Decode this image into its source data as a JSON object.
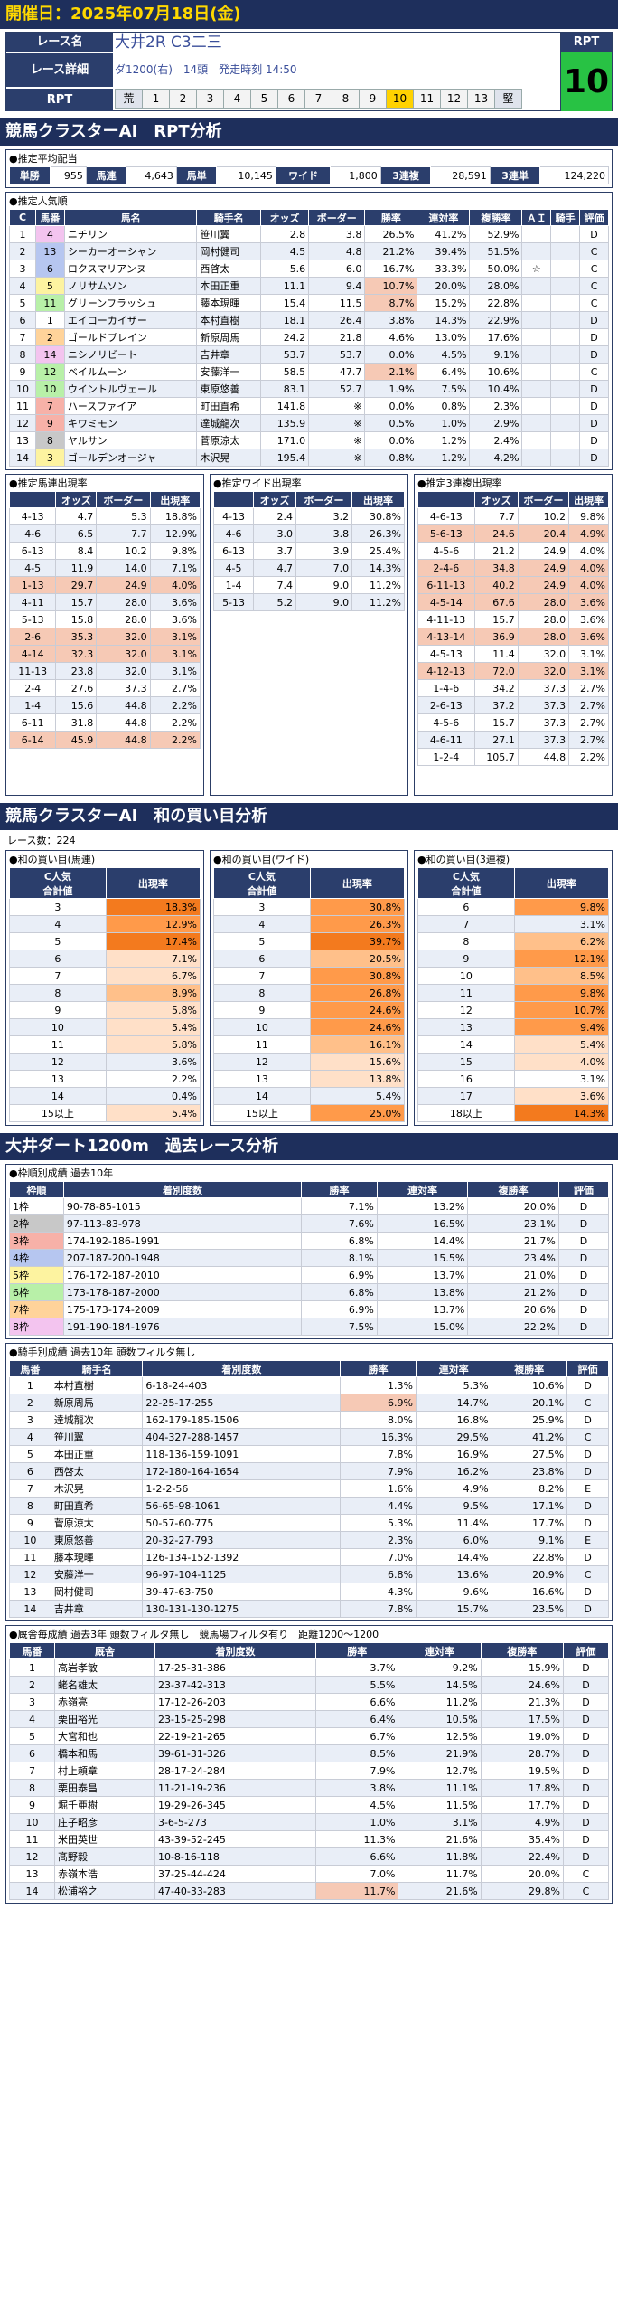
{
  "header": {
    "date": "開催日：2025年07月18日(金)"
  },
  "race": {
    "name_label": "レース名",
    "name": "大井2R C3二三",
    "detail_label": "レース詳細",
    "detail": "ダ1200(右)　14頭　発走時刻 14:50",
    "rpt_label": "RPT",
    "rpt_cells": [
      "荒",
      "1",
      "2",
      "3",
      "4",
      "5",
      "6",
      "7",
      "8",
      "9",
      "10",
      "11",
      "12",
      "13",
      "堅"
    ],
    "rpt_highlight": 10,
    "rpt_box_label": "RPT",
    "rpt_value": "10"
  },
  "s1": {
    "title": "競馬クラスターAI　RPT分析"
  },
  "payout": {
    "title": "●推定平均配当",
    "items": [
      [
        "単勝",
        "955"
      ],
      [
        "馬連",
        "4,643"
      ],
      [
        "馬単",
        "10,145"
      ],
      [
        "ワイド",
        "1,800"
      ],
      [
        "3連複",
        "28,591"
      ],
      [
        "3連単",
        "124,220"
      ]
    ]
  },
  "popularity": {
    "title": "●推定人気順",
    "headers": [
      "C",
      "馬番",
      "馬名",
      "騎手名",
      "オッズ",
      "ボーダー",
      "勝率",
      "連対率",
      "複勝率",
      "ＡＩ",
      "騎手",
      "評価"
    ],
    "rows": [
      [
        "1",
        "4",
        "ニチリン",
        "笹川翼",
        "2.8",
        "3.8",
        "26.5%",
        "41.2%",
        "52.9%",
        "",
        "",
        "D"
      ],
      [
        "2",
        "13",
        "シーカーオーシャン",
        "岡村健司",
        "4.5",
        "4.8",
        "21.2%",
        "39.4%",
        "51.5%",
        "",
        "",
        "C"
      ],
      [
        "3",
        "6",
        "ロクスマリアンヌ",
        "西啓太",
        "5.6",
        "6.0",
        "16.7%",
        "33.3%",
        "50.0%",
        "☆",
        "",
        "C"
      ],
      [
        "4",
        "5",
        "ノリサムソン",
        "本田正重",
        "11.1",
        "9.4",
        "10.7%",
        "20.0%",
        "28.0%",
        "",
        "",
        "C"
      ],
      [
        "5",
        "11",
        "グリーンフラッシュ",
        "藤本現暉",
        "15.4",
        "11.5",
        "8.7%",
        "15.2%",
        "22.8%",
        "",
        "",
        "C"
      ],
      [
        "6",
        "1",
        "エイコーカイザー",
        "本村直樹",
        "18.1",
        "26.4",
        "3.8%",
        "14.3%",
        "22.9%",
        "",
        "",
        "D"
      ],
      [
        "7",
        "2",
        "ゴールドプレイン",
        "新原周馬",
        "24.2",
        "21.8",
        "4.6%",
        "13.0%",
        "17.6%",
        "",
        "",
        "D"
      ],
      [
        "8",
        "14",
        "ニシノリビート",
        "吉井章",
        "53.7",
        "53.7",
        "0.0%",
        "4.5%",
        "9.1%",
        "",
        "",
        "D"
      ],
      [
        "9",
        "12",
        "ベイルムーン",
        "安藤洋一",
        "58.5",
        "47.7",
        "2.1%",
        "6.4%",
        "10.6%",
        "",
        "",
        "C"
      ],
      [
        "10",
        "10",
        "ウイントルヴェール",
        "東原悠善",
        "83.1",
        "52.7",
        "1.9%",
        "7.5%",
        "10.4%",
        "",
        "",
        "D"
      ],
      [
        "11",
        "7",
        "ハースファイア",
        "町田直希",
        "141.8",
        "※",
        "0.0%",
        "0.8%",
        "2.3%",
        "",
        "",
        "D"
      ],
      [
        "12",
        "9",
        "キワミモン",
        "達城龍次",
        "135.9",
        "※",
        "0.5%",
        "1.0%",
        "2.9%",
        "",
        "",
        "D"
      ],
      [
        "13",
        "8",
        "ヤルサン",
        "菅原涼太",
        "171.0",
        "※",
        "0.0%",
        "1.2%",
        "2.4%",
        "",
        "",
        "D"
      ],
      [
        "14",
        "3",
        "ゴールデンオージャ",
        "木沢晃",
        "195.4",
        "※",
        "0.8%",
        "1.2%",
        "4.2%",
        "",
        "",
        "D"
      ]
    ]
  },
  "umaren": {
    "title": "●推定馬連出現率",
    "headers": [
      "",
      "オッズ",
      "ボーダー",
      "出現率"
    ],
    "rows": [
      [
        "4-13",
        "4.7",
        "5.3",
        "18.8%"
      ],
      [
        "4-6",
        "6.5",
        "7.7",
        "12.9%"
      ],
      [
        "6-13",
        "8.4",
        "10.2",
        "9.8%"
      ],
      [
        "4-5",
        "11.9",
        "14.0",
        "7.1%"
      ],
      [
        "1-13",
        "29.7",
        "24.9",
        "4.0%"
      ],
      [
        "4-11",
        "15.7",
        "28.0",
        "3.6%"
      ],
      [
        "5-13",
        "15.8",
        "28.0",
        "3.6%"
      ],
      [
        "2-6",
        "35.3",
        "32.0",
        "3.1%"
      ],
      [
        "4-14",
        "32.3",
        "32.0",
        "3.1%"
      ],
      [
        "11-13",
        "23.8",
        "32.0",
        "3.1%"
      ],
      [
        "2-4",
        "27.6",
        "37.3",
        "2.7%"
      ],
      [
        "1-4",
        "15.6",
        "44.8",
        "2.2%"
      ],
      [
        "6-11",
        "31.8",
        "44.8",
        "2.2%"
      ],
      [
        "6-14",
        "45.9",
        "44.8",
        "2.2%"
      ]
    ]
  },
  "wide": {
    "title": "●推定ワイド出現率",
    "headers": [
      "",
      "オッズ",
      "ボーダー",
      "出現率"
    ],
    "rows": [
      [
        "4-13",
        "2.4",
        "3.2",
        "30.8%"
      ],
      [
        "4-6",
        "3.0",
        "3.8",
        "26.3%"
      ],
      [
        "6-13",
        "3.7",
        "3.9",
        "25.4%"
      ],
      [
        "4-5",
        "4.7",
        "7.0",
        "14.3%"
      ],
      [
        "1-4",
        "7.4",
        "9.0",
        "11.2%"
      ],
      [
        "5-13",
        "5.2",
        "9.0",
        "11.2%"
      ]
    ]
  },
  "sanrenpuku": {
    "title": "●推定3連複出現率",
    "headers": [
      "",
      "オッズ",
      "ボーダー",
      "出現率"
    ],
    "rows": [
      [
        "4-6-13",
        "7.7",
        "10.2",
        "9.8%"
      ],
      [
        "5-6-13",
        "24.6",
        "20.4",
        "4.9%"
      ],
      [
        "4-5-6",
        "21.2",
        "24.9",
        "4.0%"
      ],
      [
        "2-4-6",
        "34.8",
        "24.9",
        "4.0%"
      ],
      [
        "6-11-13",
        "40.2",
        "24.9",
        "4.0%"
      ],
      [
        "4-5-14",
        "67.6",
        "28.0",
        "3.6%"
      ],
      [
        "4-11-13",
        "15.7",
        "28.0",
        "3.6%"
      ],
      [
        "4-13-14",
        "36.9",
        "28.0",
        "3.6%"
      ],
      [
        "4-5-13",
        "11.4",
        "32.0",
        "3.1%"
      ],
      [
        "4-12-13",
        "72.0",
        "32.0",
        "3.1%"
      ],
      [
        "1-4-6",
        "34.2",
        "37.3",
        "2.7%"
      ],
      [
        "2-6-13",
        "37.2",
        "37.3",
        "2.7%"
      ],
      [
        "4-5-6",
        "15.7",
        "37.3",
        "2.7%"
      ],
      [
        "4-6-11",
        "27.1",
        "37.3",
        "2.7%"
      ],
      [
        "1-2-4",
        "105.7",
        "44.8",
        "2.2%"
      ]
    ]
  },
  "s2": {
    "title": "競馬クラスターAI　和の買い目分析",
    "count": "レース数：224"
  },
  "wa1": {
    "title": "●和の買い目(馬連)",
    "h1": "C人気\n合計値",
    "h2": "出現率",
    "rows": [
      [
        "3",
        "18.3%"
      ],
      [
        "4",
        "12.9%"
      ],
      [
        "5",
        "17.4%"
      ],
      [
        "6",
        "7.1%"
      ],
      [
        "7",
        "6.7%"
      ],
      [
        "8",
        "8.9%"
      ],
      [
        "9",
        "5.8%"
      ],
      [
        "10",
        "5.4%"
      ],
      [
        "11",
        "5.8%"
      ],
      [
        "12",
        "3.6%"
      ],
      [
        "13",
        "2.2%"
      ],
      [
        "14",
        "0.4%"
      ],
      [
        "15以上",
        "5.4%"
      ]
    ]
  },
  "wa2": {
    "title": "●和の買い目(ワイド)",
    "h1": "C人気\n合計値",
    "h2": "出現率",
    "rows": [
      [
        "3",
        "30.8%"
      ],
      [
        "4",
        "26.3%"
      ],
      [
        "5",
        "39.7%"
      ],
      [
        "6",
        "20.5%"
      ],
      [
        "7",
        "30.8%"
      ],
      [
        "8",
        "26.8%"
      ],
      [
        "9",
        "24.6%"
      ],
      [
        "10",
        "24.6%"
      ],
      [
        "11",
        "16.1%"
      ],
      [
        "12",
        "15.6%"
      ],
      [
        "13",
        "13.8%"
      ],
      [
        "14",
        "5.4%"
      ],
      [
        "15以上",
        "25.0%"
      ]
    ]
  },
  "wa3": {
    "title": "●和の買い目(3連複)",
    "h1": "C人気\n合計値",
    "h2": "出現率",
    "rows": [
      [
        "6",
        "9.8%"
      ],
      [
        "7",
        "3.1%"
      ],
      [
        "8",
        "6.2%"
      ],
      [
        "9",
        "12.1%"
      ],
      [
        "10",
        "8.5%"
      ],
      [
        "11",
        "9.8%"
      ],
      [
        "12",
        "10.7%"
      ],
      [
        "13",
        "9.4%"
      ],
      [
        "14",
        "5.4%"
      ],
      [
        "15",
        "4.0%"
      ],
      [
        "16",
        "3.1%"
      ],
      [
        "17",
        "3.6%"
      ],
      [
        "18以上",
        "14.3%"
      ]
    ]
  },
  "s3": {
    "title": "大井ダート1200m　過去レース分析"
  },
  "waku": {
    "title": "●枠順別成績 過去10年",
    "headers": [
      "枠順",
      "着別度数",
      "勝率",
      "連対率",
      "複勝率",
      "評価"
    ],
    "rows": [
      [
        "1枠",
        "90-78-85-1015",
        "7.1%",
        "13.2%",
        "20.0%",
        "D"
      ],
      [
        "2枠",
        "97-113-83-978",
        "7.6%",
        "16.5%",
        "23.1%",
        "D"
      ],
      [
        "3枠",
        "174-192-186-1991",
        "6.8%",
        "14.4%",
        "21.7%",
        "D"
      ],
      [
        "4枠",
        "207-187-200-1948",
        "8.1%",
        "15.5%",
        "23.4%",
        "D"
      ],
      [
        "5枠",
        "176-172-187-2010",
        "6.9%",
        "13.7%",
        "21.0%",
        "D"
      ],
      [
        "6枠",
        "173-178-187-2000",
        "6.8%",
        "13.8%",
        "21.2%",
        "D"
      ],
      [
        "7枠",
        "175-173-174-2009",
        "6.9%",
        "13.7%",
        "20.6%",
        "D"
      ],
      [
        "8枠",
        "191-190-184-1976",
        "7.5%",
        "15.0%",
        "22.2%",
        "D"
      ]
    ],
    "colors": [
      "#ffffff",
      "#c8c8c8",
      "#f7b1a8",
      "#b6c6f0",
      "#fdf3a0",
      "#b8f0a8",
      "#ffd39a",
      "#f3c4ef"
    ]
  },
  "jockey": {
    "title": "●騎手別成績 過去10年 頭数フィルタ無し",
    "headers": [
      "馬番",
      "騎手名",
      "着別度数",
      "勝率",
      "連対率",
      "複勝率",
      "評価"
    ],
    "rows": [
      [
        "1",
        "本村直樹",
        "6-18-24-403",
        "1.3%",
        "5.3%",
        "10.6%",
        "D"
      ],
      [
        "2",
        "新原周馬",
        "22-25-17-255",
        "6.9%",
        "14.7%",
        "20.1%",
        "C"
      ],
      [
        "3",
        "達城龍次",
        "162-179-185-1506",
        "8.0%",
        "16.8%",
        "25.9%",
        "D"
      ],
      [
        "4",
        "笹川翼",
        "404-327-288-1457",
        "16.3%",
        "29.5%",
        "41.2%",
        "C"
      ],
      [
        "5",
        "本田正重",
        "118-136-159-1091",
        "7.8%",
        "16.9%",
        "27.5%",
        "D"
      ],
      [
        "6",
        "西啓太",
        "172-180-164-1654",
        "7.9%",
        "16.2%",
        "23.8%",
        "D"
      ],
      [
        "7",
        "木沢晃",
        "1-2-2-56",
        "1.6%",
        "4.9%",
        "8.2%",
        "E"
      ],
      [
        "8",
        "町田直希",
        "56-65-98-1061",
        "4.4%",
        "9.5%",
        "17.1%",
        "D"
      ],
      [
        "9",
        "菅原涼太",
        "50-57-60-775",
        "5.3%",
        "11.4%",
        "17.7%",
        "D"
      ],
      [
        "10",
        "東原悠善",
        "20-32-27-793",
        "2.3%",
        "6.0%",
        "9.1%",
        "E"
      ],
      [
        "11",
        "藤本現暉",
        "126-134-152-1392",
        "7.0%",
        "14.4%",
        "22.8%",
        "D"
      ],
      [
        "12",
        "安藤洋一",
        "96-97-104-1125",
        "6.8%",
        "13.6%",
        "20.9%",
        "C"
      ],
      [
        "13",
        "岡村健司",
        "39-47-63-750",
        "4.3%",
        "9.6%",
        "16.6%",
        "D"
      ],
      [
        "14",
        "吉井章",
        "130-131-130-1275",
        "7.8%",
        "15.7%",
        "23.5%",
        "D"
      ]
    ]
  },
  "trainer": {
    "title": "●厩舎毎成績 過去3年 頭数フィルタ無し　競馬場フィルタ有り　距離1200～1200",
    "headers": [
      "馬番",
      "厩舎",
      "着別度数",
      "勝率",
      "連対率",
      "複勝率",
      "評価"
    ],
    "rows": [
      [
        "1",
        "高岩孝敏",
        "17-25-31-386",
        "3.7%",
        "9.2%",
        "15.9%",
        "D"
      ],
      [
        "2",
        "蛯名雄太",
        "23-37-42-313",
        "5.5%",
        "14.5%",
        "24.6%",
        "D"
      ],
      [
        "3",
        "赤嶺亮",
        "17-12-26-203",
        "6.6%",
        "11.2%",
        "21.3%",
        "D"
      ],
      [
        "4",
        "栗田裕光",
        "23-15-25-298",
        "6.4%",
        "10.5%",
        "17.5%",
        "D"
      ],
      [
        "5",
        "大宮和也",
        "22-19-21-265",
        "6.7%",
        "12.5%",
        "19.0%",
        "D"
      ],
      [
        "6",
        "橋本和馬",
        "39-61-31-326",
        "8.5%",
        "21.9%",
        "28.7%",
        "D"
      ],
      [
        "7",
        "村上頼章",
        "28-17-24-284",
        "7.9%",
        "12.7%",
        "19.5%",
        "D"
      ],
      [
        "8",
        "栗田泰昌",
        "11-21-19-236",
        "3.8%",
        "11.1%",
        "17.8%",
        "D"
      ],
      [
        "9",
        "堀千亜樹",
        "19-29-26-345",
        "4.5%",
        "11.5%",
        "17.7%",
        "D"
      ],
      [
        "10",
        "庄子昭彦",
        "3-6-5-273",
        "1.0%",
        "3.1%",
        "4.9%",
        "D"
      ],
      [
        "11",
        "米田英世",
        "43-39-52-245",
        "11.3%",
        "21.6%",
        "35.4%",
        "D"
      ],
      [
        "12",
        "髙野毅",
        "10-8-16-118",
        "6.6%",
        "11.8%",
        "22.4%",
        "D"
      ],
      [
        "13",
        "赤嶺本浩",
        "37-25-44-424",
        "7.0%",
        "11.7%",
        "20.0%",
        "C"
      ],
      [
        "14",
        "松浦裕之",
        "47-40-33-283",
        "11.7%",
        "21.6%",
        "29.8%",
        "C"
      ]
    ]
  }
}
